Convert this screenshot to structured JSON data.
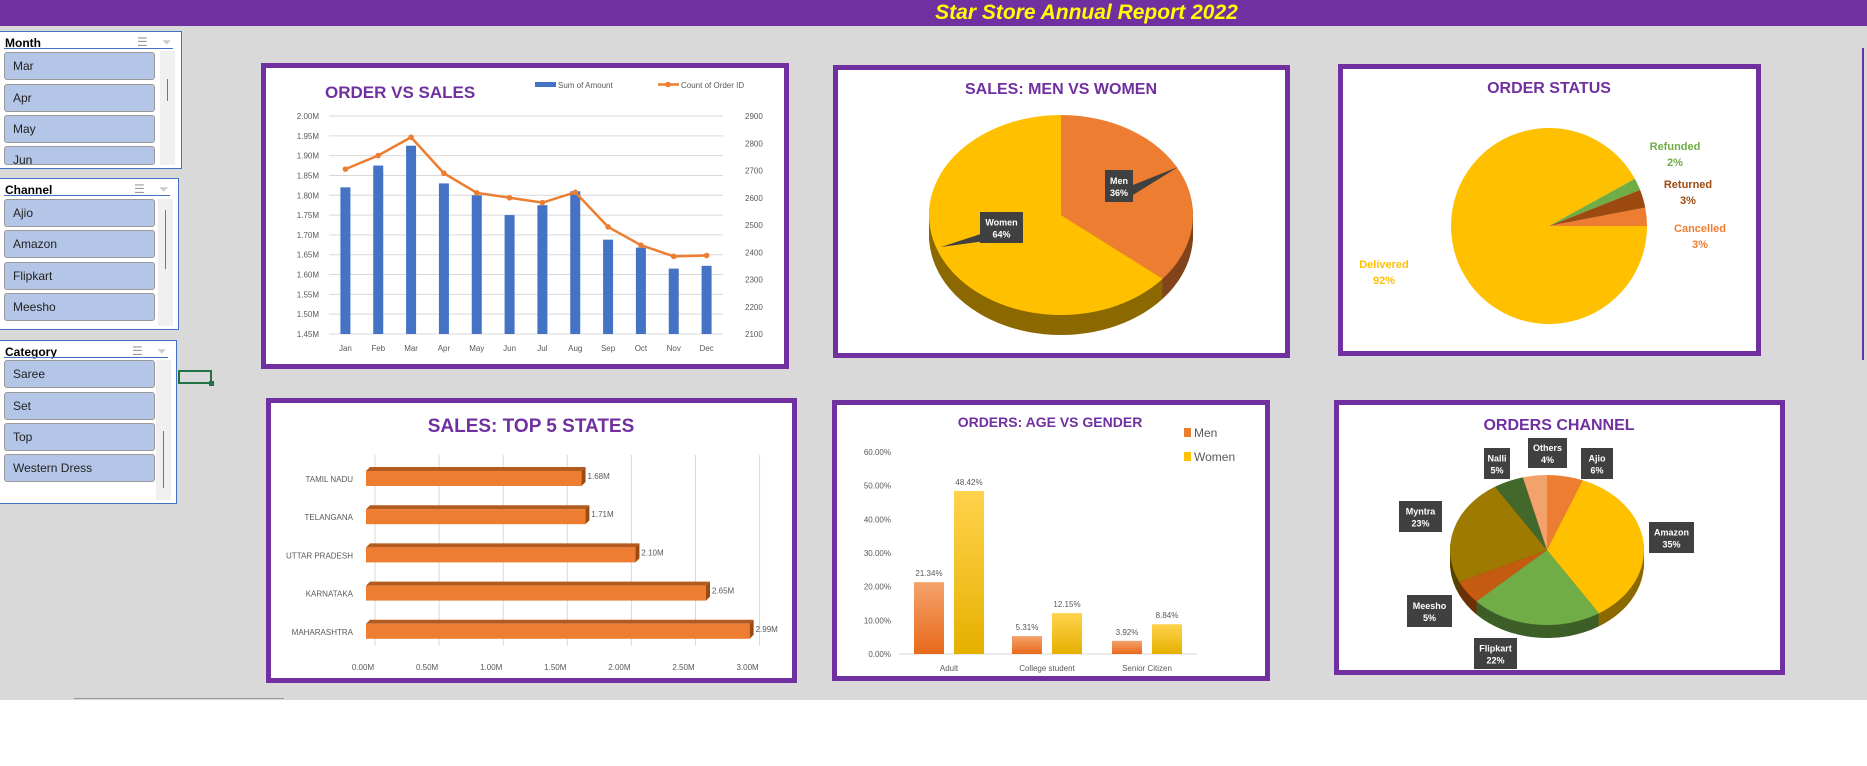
{
  "title": "Star Store Annual Report 2022",
  "colors": {
    "purple": "#7030a0",
    "title_text": "#ffff00",
    "blue": "#4472c4",
    "orange": "#ed7d31",
    "gold": "#ffc000",
    "green": "#70ad47",
    "slicer_item": "#b4c6e7"
  },
  "slicers": [
    {
      "header": "Month",
      "items": [
        "Mar",
        "Apr",
        "May",
        "Jun"
      ],
      "multiselect_icon": "multi-select-icon",
      "clear_icon": "clear-filter-icon"
    },
    {
      "header": "Channel",
      "items": [
        "Ajio",
        "Amazon",
        "Flipkart",
        "Meesho"
      ],
      "multiselect_icon": "multi-select-icon",
      "clear_icon": "clear-filter-icon"
    },
    {
      "header": "Category",
      "items": [
        "Saree",
        "Set",
        "Top",
        "Western Dress"
      ],
      "multiselect_icon": "multi-select-icon",
      "clear_icon": "clear-filter-icon"
    }
  ],
  "chart_data": [
    {
      "type": "bar+line",
      "title": "ORDER  VS SALES",
      "categories": [
        "Jan",
        "Feb",
        "Mar",
        "Apr",
        "May",
        "Jun",
        "Jul",
        "Aug",
        "Sep",
        "Oct",
        "Nov",
        "Dec"
      ],
      "series": [
        {
          "name": "Sum of Amount",
          "type": "bar",
          "axis": "left",
          "values": [
            1.82,
            1.875,
            1.925,
            1.83,
            1.8,
            1.75,
            1.775,
            1.81,
            1.688,
            1.668,
            1.615,
            1.622
          ]
        },
        {
          "name": "Count of Order ID",
          "type": "line",
          "axis": "right",
          "values": [
            2705,
            2755,
            2822,
            2690,
            2618,
            2600,
            2582,
            2620,
            2493,
            2426,
            2385,
            2388
          ]
        }
      ],
      "left_ticks": [
        "1.45M",
        "1.50M",
        "1.55M",
        "1.60M",
        "1.65M",
        "1.70M",
        "1.75M",
        "1.80M",
        "1.85M",
        "1.90M",
        "1.95M",
        "2.00M"
      ],
      "right_ticks": [
        "2100",
        "2200",
        "2300",
        "2400",
        "2500",
        "2600",
        "2700",
        "2800",
        "2900"
      ],
      "ylim": [
        1.45,
        2.0
      ],
      "y2lim": [
        2100,
        2900
      ],
      "grid": true,
      "legend": "top-right"
    },
    {
      "type": "pie",
      "title": "SALES: MEN VS WOMEN",
      "slices": [
        {
          "label": "Men",
          "value": 36,
          "text": "36%"
        },
        {
          "label": "Women",
          "value": 64,
          "text": "64%"
        }
      ]
    },
    {
      "type": "pie",
      "title": "ORDER STATUS",
      "slices": [
        {
          "label": "Delivered",
          "value": 92,
          "text": "92%"
        },
        {
          "label": "Refunded",
          "value": 2,
          "text": "2%"
        },
        {
          "label": "Returned",
          "value": 3,
          "text": "3%"
        },
        {
          "label": "Cancelled",
          "value": 3,
          "text": "3%"
        }
      ]
    },
    {
      "type": "bar",
      "orientation": "horizontal",
      "title": "SALES: TOP 5 STATES",
      "categories": [
        "TAMIL NADU",
        "TELANGANA",
        "UTTAR PRADESH",
        "KARNATAKA",
        "MAHARASHTRA"
      ],
      "values": [
        1.68,
        1.71,
        2.1,
        2.65,
        2.99
      ],
      "data_labels": [
        "1.68M",
        "1.71M",
        "2.10M",
        "2.65M",
        "2.99M"
      ],
      "x_ticks": [
        "0.00M",
        "0.50M",
        "1.00M",
        "1.50M",
        "2.00M",
        "2.50M",
        "3.00M"
      ],
      "xlim": [
        0,
        3.0
      ],
      "grid": true
    },
    {
      "type": "bar",
      "title": "ORDERS: AGE VS GENDER",
      "categories": [
        "Adult",
        "College student",
        "Senior Citizen"
      ],
      "series": [
        {
          "name": "Men",
          "values": [
            21.34,
            5.31,
            3.92
          ],
          "labels": [
            "21.34%",
            "5.31%",
            "3.92%"
          ]
        },
        {
          "name": "Women",
          "values": [
            48.42,
            12.15,
            8.84
          ],
          "labels": [
            "48.42%",
            "12.15%",
            "8.84%"
          ]
        }
      ],
      "y_ticks": [
        "0.00%",
        "10.00%",
        "20.00%",
        "30.00%",
        "40.00%",
        "50.00%",
        "60.00%"
      ],
      "ylim": [
        0,
        60
      ],
      "legend": "top-right"
    },
    {
      "type": "pie",
      "title": "ORDERS CHANNEL",
      "slices": [
        {
          "label": "Ajio",
          "value": 6,
          "text": "6%"
        },
        {
          "label": "Amazon",
          "value": 35,
          "text": "35%"
        },
        {
          "label": "Flipkart",
          "value": 22,
          "text": "22%"
        },
        {
          "label": "Meesho",
          "value": 5,
          "text": "5%"
        },
        {
          "label": "Myntra",
          "value": 23,
          "text": "23%"
        },
        {
          "label": "Nalli",
          "value": 5,
          "text": "5%"
        },
        {
          "label": "Others",
          "value": 4,
          "text": "4%"
        }
      ]
    }
  ]
}
